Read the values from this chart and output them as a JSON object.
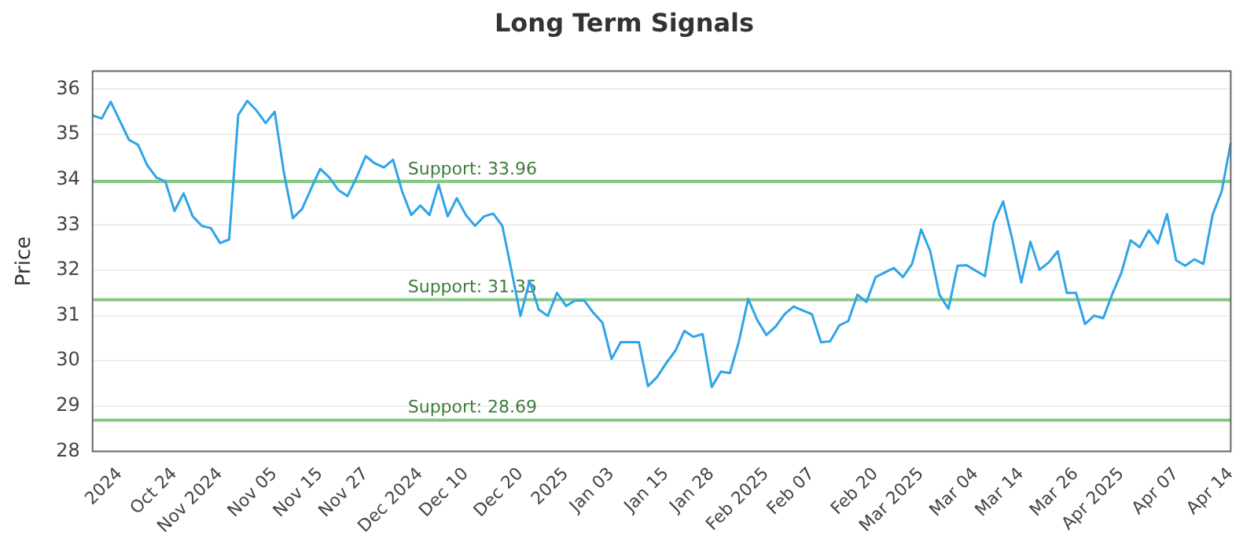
{
  "chart_data": {
    "type": "line",
    "title": "Long Term Signals",
    "ylabel": "Price",
    "categories": [
      null,
      null,
      null,
      "2024",
      null,
      null,
      null,
      null,
      null,
      "Oct 24",
      null,
      null,
      null,
      null,
      "Nov 2024",
      null,
      null,
      null,
      null,
      null,
      "Nov 05",
      null,
      null,
      null,
      null,
      "Nov 15",
      null,
      null,
      null,
      null,
      "Nov 27",
      null,
      null,
      null,
      null,
      null,
      "Dec 2024",
      null,
      null,
      null,
      null,
      "Dec 10",
      null,
      null,
      null,
      null,
      null,
      "Dec 20",
      null,
      null,
      null,
      null,
      "2025",
      null,
      null,
      null,
      null,
      "Jan 03",
      null,
      null,
      null,
      null,
      null,
      "Jan 15",
      null,
      null,
      null,
      null,
      "Jan 28",
      null,
      null,
      null,
      null,
      null,
      "Feb 2025",
      null,
      null,
      null,
      null,
      "Feb 07",
      null,
      null,
      null,
      null,
      null,
      null,
      "Feb 20",
      null,
      null,
      null,
      null,
      "Mar 2025",
      null,
      null,
      null,
      null,
      null,
      "Mar 04",
      null,
      null,
      null,
      null,
      "Mar 14",
      null,
      null,
      null,
      null,
      null,
      "Mar 26",
      null,
      null,
      null,
      null,
      "Apr 2025",
      null,
      null,
      null,
      null,
      null,
      "Apr 07",
      null,
      null,
      null,
      null,
      null,
      "Apr 14"
    ],
    "series": [
      {
        "color": "#2fa4e7",
        "values": [
          35.42,
          35.35,
          35.72,
          35.3,
          34.88,
          34.77,
          34.32,
          34.05,
          33.96,
          33.31,
          33.7,
          33.19,
          32.98,
          32.93,
          32.6,
          32.68,
          35.43,
          35.74,
          35.53,
          35.25,
          35.5,
          34.17,
          33.15,
          33.35,
          33.8,
          34.24,
          34.05,
          33.77,
          33.64,
          34.05,
          34.52,
          34.36,
          34.27,
          34.44,
          33.74,
          33.22,
          33.43,
          33.22,
          33.89,
          33.19,
          33.59,
          33.22,
          32.98,
          33.19,
          33.25,
          32.98,
          32.0,
          30.99,
          31.77,
          31.13,
          30.99,
          31.5,
          31.21,
          31.33,
          31.33,
          31.06,
          30.84,
          30.04,
          30.41,
          30.41,
          30.41,
          29.44,
          29.64,
          29.95,
          30.22,
          30.66,
          30.53,
          30.59,
          29.42,
          29.76,
          29.73,
          30.44,
          31.37,
          30.9,
          30.57,
          30.75,
          31.03,
          31.2,
          31.11,
          31.03,
          30.41,
          30.43,
          30.78,
          30.88,
          31.46,
          31.3,
          31.85,
          31.95,
          32.05,
          31.85,
          32.14,
          32.9,
          32.42,
          31.46,
          31.15,
          32.1,
          32.11,
          31.99,
          31.87,
          33.06,
          33.52,
          32.69,
          31.73,
          32.63,
          32.01,
          32.17,
          32.42,
          31.5,
          31.5,
          30.81,
          31.0,
          30.94,
          31.48,
          31.95,
          32.66,
          32.51,
          32.88,
          32.59,
          33.24,
          32.22,
          32.1,
          32.24,
          32.14,
          33.22,
          33.74,
          34.81
        ]
      }
    ],
    "ylim": [
      28,
      36.4
    ],
    "yticks": [
      28,
      29,
      30,
      31,
      32,
      33,
      34,
      35,
      36
    ],
    "ref_lines": [
      {
        "axis": "y",
        "value": 33.96,
        "label": "Support: 33.96",
        "color": "#86c986"
      },
      {
        "axis": "y",
        "value": 31.35,
        "label": "Support: 31.35",
        "color": "#86c986"
      },
      {
        "axis": "y",
        "value": 28.69,
        "label": "Support: 28.69",
        "color": "#86c986"
      }
    ],
    "grid": "y",
    "legend": false,
    "marker": "none",
    "line_style": "solid"
  }
}
